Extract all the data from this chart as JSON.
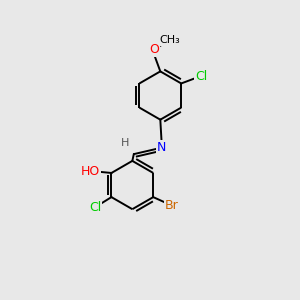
{
  "background_color": "#e8e8e8",
  "bond_color": "#000000",
  "atom_colors": {
    "O": "#ff0000",
    "N": "#0000ff",
    "Cl": "#00cc00",
    "Br": "#cc6600",
    "C": "#000000",
    "H": "#555555"
  },
  "font_size": 9,
  "bond_width": 1.4,
  "figsize": [
    3.0,
    3.0
  ],
  "dpi": 100,
  "xlim": [
    0,
    10
  ],
  "ylim": [
    0,
    10
  ]
}
